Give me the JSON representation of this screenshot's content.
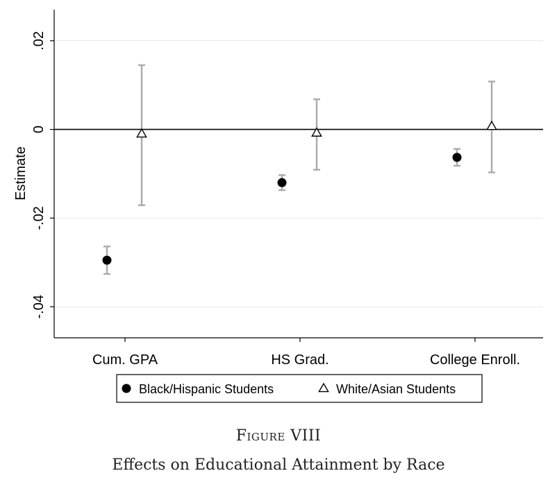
{
  "chart_data": {
    "type": "scatter",
    "ylabel": "Estimate",
    "xlabel": "",
    "categories": [
      "Cum. GPA",
      "HS Grad.",
      "College Enroll."
    ],
    "ylim": [
      -0.047,
      0.027
    ],
    "yticks": [
      0.02,
      0,
      -0.02,
      -0.04
    ],
    "ytick_labels": [
      ".02",
      "0",
      "-.02",
      "-.04"
    ],
    "reference_line": 0,
    "grid": true,
    "legend_position": "bottom",
    "series": [
      {
        "name": "Black/Hispanic Students",
        "marker": "filled-circle",
        "color": "#000000",
        "ci_color": "#aaaaaa",
        "values": [
          -0.0295,
          -0.012,
          -0.0063
        ],
        "ci_low": [
          -0.0326,
          -0.0137,
          -0.0082
        ],
        "ci_high": [
          -0.0264,
          -0.0103,
          -0.0044
        ]
      },
      {
        "name": "White/Asian Students",
        "marker": "hollow-triangle",
        "color": "#000000",
        "ci_color": "#aaaaaa",
        "values": [
          -0.001,
          -0.0008,
          0.0007
        ],
        "ci_low": [
          -0.0171,
          -0.0091,
          -0.0097
        ],
        "ci_high": [
          0.0145,
          0.0068,
          0.0108
        ]
      }
    ]
  },
  "figure": {
    "label": "Figure VIII",
    "title": "Effects on Educational Attainment by Race"
  }
}
